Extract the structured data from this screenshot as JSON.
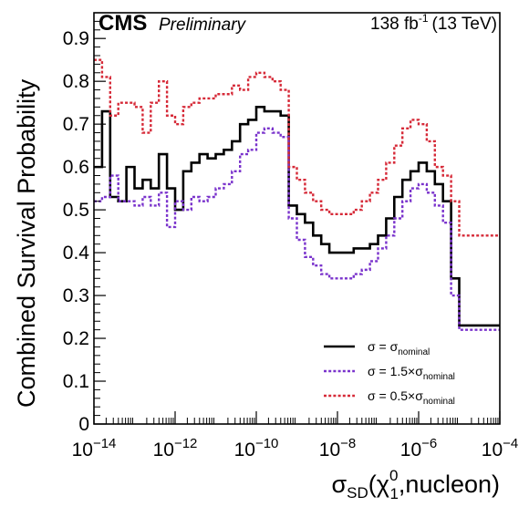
{
  "header": {
    "experiment": "CMS",
    "status": "Preliminary",
    "lumi_value": "138 fb",
    "lumi_exponent": "-1",
    "energy": "(13 TeV)"
  },
  "chart_data": {
    "type": "line",
    "step": true,
    "title": "",
    "ylabel": "Combined Survival Probability",
    "xlabel_parts": {
      "sigma": "σ",
      "sub": "SD",
      "open": "(",
      "chi": "χ",
      "chi_sup": "0",
      "chi_sub": "1",
      "rest": ",nucleon)"
    },
    "xscale": "log",
    "xlim": [
      1e-14,
      0.0001
    ],
    "ylim": [
      0,
      0.96
    ],
    "x_ticks": [
      {
        "value": 1e-14,
        "base": "10",
        "exp": "−14"
      },
      {
        "value": 1e-12,
        "base": "10",
        "exp": "−12"
      },
      {
        "value": 1e-10,
        "base": "10",
        "exp": "−10"
      },
      {
        "value": 1e-08,
        "base": "10",
        "exp": "−8"
      },
      {
        "value": 1e-06,
        "base": "10",
        "exp": "−6"
      },
      {
        "value": 0.0001,
        "base": "10",
        "exp": "−4"
      }
    ],
    "y_ticks": [
      {
        "value": 0,
        "label": "0"
      },
      {
        "value": 0.1,
        "label": "0.1"
      },
      {
        "value": 0.2,
        "label": "0.2"
      },
      {
        "value": 0.3,
        "label": "0.3"
      },
      {
        "value": 0.4,
        "label": "0.4"
      },
      {
        "value": 0.5,
        "label": "0.5"
      },
      {
        "value": 0.6,
        "label": "0.6"
      },
      {
        "value": 0.7,
        "label": "0.7"
      },
      {
        "value": 0.8,
        "label": "0.8"
      },
      {
        "value": 0.9,
        "label": "0.9"
      }
    ],
    "bin_edges_log10": [
      -14,
      -13.8,
      -13.6,
      -13.4,
      -13.2,
      -13,
      -12.8,
      -12.6,
      -12.4,
      -12.2,
      -12,
      -11.8,
      -11.6,
      -11.4,
      -11.2,
      -11,
      -10.8,
      -10.6,
      -10.4,
      -10.2,
      -10,
      -9.8,
      -9.6,
      -9.4,
      -9.2,
      -9,
      -8.8,
      -8.6,
      -8.4,
      -8.2,
      -8,
      -7.8,
      -7.6,
      -7.4,
      -7.2,
      -7,
      -6.8,
      -6.6,
      -6.4,
      -6.2,
      -6,
      -5.8,
      -5.6,
      -5.4,
      -5.2,
      -5,
      -4.8,
      -4.6,
      -4.4,
      -4.2,
      -4
    ],
    "series": [
      {
        "name_main": "σ = σ",
        "name_sub": "nominal",
        "color": "#000000",
        "dash": "solid",
        "values": [
          0.6,
          0.73,
          0.53,
          0.52,
          0.6,
          0.55,
          0.57,
          0.55,
          0.63,
          0.55,
          0.5,
          0.59,
          0.61,
          0.63,
          0.62,
          0.63,
          0.64,
          0.66,
          0.7,
          0.71,
          0.74,
          0.73,
          0.73,
          0.72,
          0.51,
          0.49,
          0.47,
          0.44,
          0.42,
          0.4,
          0.4,
          0.4,
          0.41,
          0.41,
          0.42,
          0.44,
          0.48,
          0.53,
          0.57,
          0.59,
          0.61,
          0.59,
          0.56,
          0.52,
          0.34,
          0.23,
          0.23,
          0.23,
          0.23,
          0.23
        ]
      },
      {
        "name_main": "σ = 1.5×σ",
        "name_sub": "nominal",
        "color": "#7a33cc",
        "dash": "dotted",
        "values": [
          0.52,
          0.53,
          0.58,
          0.52,
          0.52,
          0.51,
          0.53,
          0.51,
          0.54,
          0.46,
          0.52,
          0.5,
          0.53,
          0.52,
          0.53,
          0.55,
          0.56,
          0.59,
          0.63,
          0.64,
          0.68,
          0.69,
          0.68,
          0.67,
          0.48,
          0.43,
          0.39,
          0.37,
          0.35,
          0.34,
          0.34,
          0.34,
          0.35,
          0.36,
          0.38,
          0.41,
          0.44,
          0.48,
          0.52,
          0.55,
          0.56,
          0.54,
          0.51,
          0.47,
          0.3,
          0.22,
          0.22,
          0.22,
          0.22,
          0.22
        ]
      },
      {
        "name_main": "σ = 0.5×σ",
        "name_sub": "nominal",
        "color": "#d62a38",
        "dash": "dotted",
        "values": [
          0.85,
          0.81,
          0.72,
          0.75,
          0.75,
          0.74,
          0.68,
          0.75,
          0.8,
          0.72,
          0.7,
          0.74,
          0.75,
          0.76,
          0.76,
          0.77,
          0.77,
          0.79,
          0.78,
          0.81,
          0.82,
          0.81,
          0.8,
          0.78,
          0.6,
          0.57,
          0.54,
          0.52,
          0.5,
          0.49,
          0.49,
          0.49,
          0.5,
          0.52,
          0.54,
          0.57,
          0.61,
          0.65,
          0.69,
          0.71,
          0.7,
          0.66,
          0.6,
          0.58,
          0.52,
          0.44,
          0.44,
          0.44,
          0.44,
          0.44
        ]
      }
    ]
  }
}
